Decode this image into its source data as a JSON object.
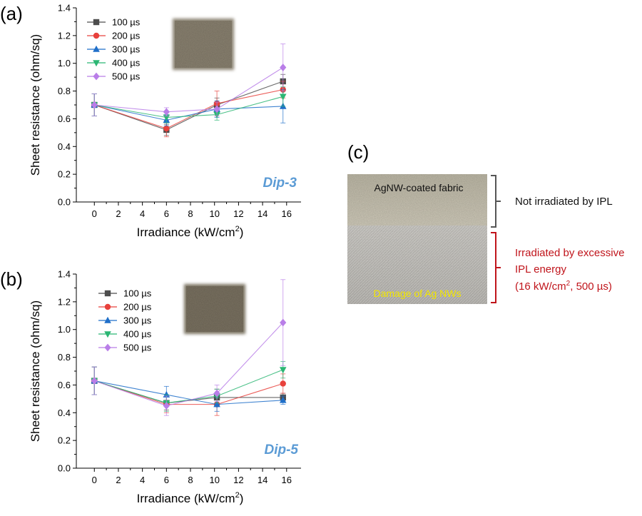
{
  "chart_data": [
    {
      "type": "line",
      "panel_label": "(a)",
      "sample_label": "Dip-3",
      "xlabel": "Irradiance (kW/cm",
      "xlabel_sup": "2",
      "xlabel_close": ")",
      "ylabel": "Sheet resistance (ohm/sq)",
      "xlim": [
        -1.5,
        17.2
      ],
      "ylim": [
        0,
        1.4
      ],
      "xticks": [
        0,
        2,
        4,
        6,
        8,
        10,
        12,
        14,
        16
      ],
      "yticks": [
        0.0,
        0.2,
        0.4,
        0.6,
        0.8,
        1.0,
        1.2,
        1.4
      ],
      "x": [
        0,
        6,
        10.2,
        15.7
      ],
      "legend_position": "top-left",
      "series": [
        {
          "name": "100 µs",
          "color": "#4d4d4d",
          "marker": "square",
          "values": [
            0.7,
            0.52,
            0.7,
            0.87
          ],
          "errors": [
            0.08,
            0.04,
            0.05,
            0.05
          ]
        },
        {
          "name": "200 µs",
          "color": "#e8413c",
          "marker": "circle",
          "values": [
            0.7,
            0.53,
            0.71,
            0.81
          ],
          "errors": [
            0.08,
            0.06,
            0.09,
            0.06
          ]
        },
        {
          "name": "300 µs",
          "color": "#1f6fc9",
          "marker": "triangle-up",
          "values": [
            0.7,
            0.59,
            0.67,
            0.69
          ],
          "errors": [
            0.08,
            0.04,
            0.06,
            0.12
          ]
        },
        {
          "name": "400 µs",
          "color": "#2bb673",
          "marker": "triangle-down",
          "values": [
            0.7,
            0.61,
            0.63,
            0.76
          ],
          "errors": [
            0.08,
            0.04,
            0.04,
            0.07
          ]
        },
        {
          "name": "500 µs",
          "color": "#b97ee8",
          "marker": "diamond",
          "values": [
            0.7,
            0.65,
            0.67,
            0.97
          ],
          "errors": [
            0.08,
            0.03,
            0.05,
            0.17
          ]
        }
      ]
    },
    {
      "type": "line",
      "panel_label": "(b)",
      "sample_label": "Dip-5",
      "xlabel": "Irradiance (kW/cm",
      "xlabel_sup": "2",
      "xlabel_close": ")",
      "ylabel": "Sheet resistance (ohm/sq)",
      "xlim": [
        -1.5,
        17.2
      ],
      "ylim": [
        0,
        1.4
      ],
      "xticks": [
        0,
        2,
        4,
        6,
        8,
        10,
        12,
        14,
        16
      ],
      "yticks": [
        0.0,
        0.2,
        0.4,
        0.6,
        0.8,
        1.0,
        1.2,
        1.4
      ],
      "x": [
        0,
        6,
        10.2,
        15.7
      ],
      "legend_position": "top-left",
      "series": [
        {
          "name": "100 µs",
          "color": "#4d4d4d",
          "marker": "square",
          "values": [
            0.63,
            0.47,
            0.51,
            0.51
          ],
          "errors": [
            0.1,
            0.05,
            0.06,
            0.03
          ]
        },
        {
          "name": "200 µs",
          "color": "#e8413c",
          "marker": "circle",
          "values": [
            0.63,
            0.46,
            0.46,
            0.61
          ],
          "errors": [
            0.1,
            0.06,
            0.08,
            0.07
          ]
        },
        {
          "name": "300 µs",
          "color": "#1f6fc9",
          "marker": "triangle-up",
          "values": [
            0.63,
            0.53,
            0.46,
            0.49
          ],
          "errors": [
            0.1,
            0.06,
            0.05,
            0.03
          ]
        },
        {
          "name": "400 µs",
          "color": "#2bb673",
          "marker": "triangle-down",
          "values": [
            0.63,
            0.47,
            0.52,
            0.71
          ],
          "errors": [
            0.1,
            0.06,
            0.05,
            0.06
          ]
        },
        {
          "name": "500 µs",
          "color": "#b97ee8",
          "marker": "diamond",
          "values": [
            0.63,
            0.45,
            0.54,
            1.05
          ],
          "errors": [
            0.1,
            0.07,
            0.06,
            0.31
          ]
        }
      ]
    }
  ],
  "panel_c": {
    "label": "(c)",
    "photo_top_caption": "AgNW-coated fabric",
    "photo_bottom_caption": "Damage of Ag NWs",
    "bracket_top_text": "Not irradiated by IPL",
    "bracket_bottom_line1": "Irradiated by excessive",
    "bracket_bottom_line2": "IPL energy",
    "bracket_bottom_line3_pre": "(16 kW/cm",
    "bracket_bottom_line3_sup": "2",
    "bracket_bottom_line3_post": ", 500 µs)",
    "colors": {
      "caption_dark": "#111111",
      "caption_yellow": "#f2e600",
      "bracket_gray": "#555555",
      "bracket_red": "#c0141b"
    }
  },
  "colors": {
    "dip_label": "#5b9bd5",
    "axis": "#000000"
  }
}
